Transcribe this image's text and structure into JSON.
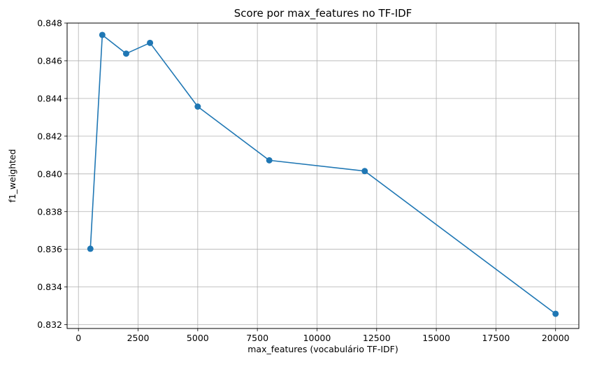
{
  "chart_data": {
    "type": "line",
    "title": "Score por max_features no TF-IDF",
    "xlabel": "max_features (vocabulário TF-IDF)",
    "ylabel": "f1_weighted",
    "xlim": [
      -475,
      20975
    ],
    "ylim": [
      0.8318,
      0.848
    ],
    "xticks": [
      0,
      2500,
      5000,
      7500,
      10000,
      12500,
      15000,
      17500,
      20000
    ],
    "xtick_labels": [
      "0",
      "2500",
      "5000",
      "7500",
      "10000",
      "12500",
      "15000",
      "17500",
      "20000"
    ],
    "yticks": [
      0.832,
      0.834,
      0.836,
      0.838,
      0.84,
      0.842,
      0.844,
      0.846,
      0.848
    ],
    "ytick_labels": [
      "0.832",
      "0.834",
      "0.836",
      "0.838",
      "0.840",
      "0.842",
      "0.844",
      "0.846",
      "0.848"
    ],
    "grid": true,
    "marker": "circle",
    "color": "#1f77b4",
    "series": [
      {
        "x": [
          500,
          1000,
          2000,
          3000,
          5000,
          8000,
          12000,
          20000
        ],
        "values": [
          0.83603,
          0.84737,
          0.84638,
          0.84695,
          0.84357,
          0.84072,
          0.84015,
          0.83258
        ]
      }
    ]
  }
}
